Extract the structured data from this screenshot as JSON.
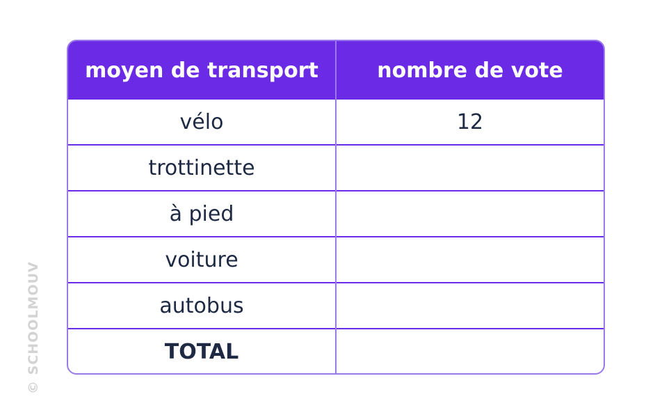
{
  "table": {
    "headers": [
      "moyen de transport",
      "nombre de vote"
    ],
    "rows": [
      {
        "transport": "vélo",
        "votes": "12"
      },
      {
        "transport": "trottinette",
        "votes": ""
      },
      {
        "transport": "à pied",
        "votes": ""
      },
      {
        "transport": "voiture",
        "votes": ""
      },
      {
        "transport": "autobus",
        "votes": ""
      },
      {
        "transport": "TOTAL",
        "votes": ""
      }
    ]
  },
  "watermark": {
    "text": "© SCHOOLMOUV"
  },
  "colors": {
    "header_bg": "#6a2ae6",
    "border": "#9a7ae8",
    "text": "#1e2a44",
    "watermark": "#d3d3d3"
  }
}
